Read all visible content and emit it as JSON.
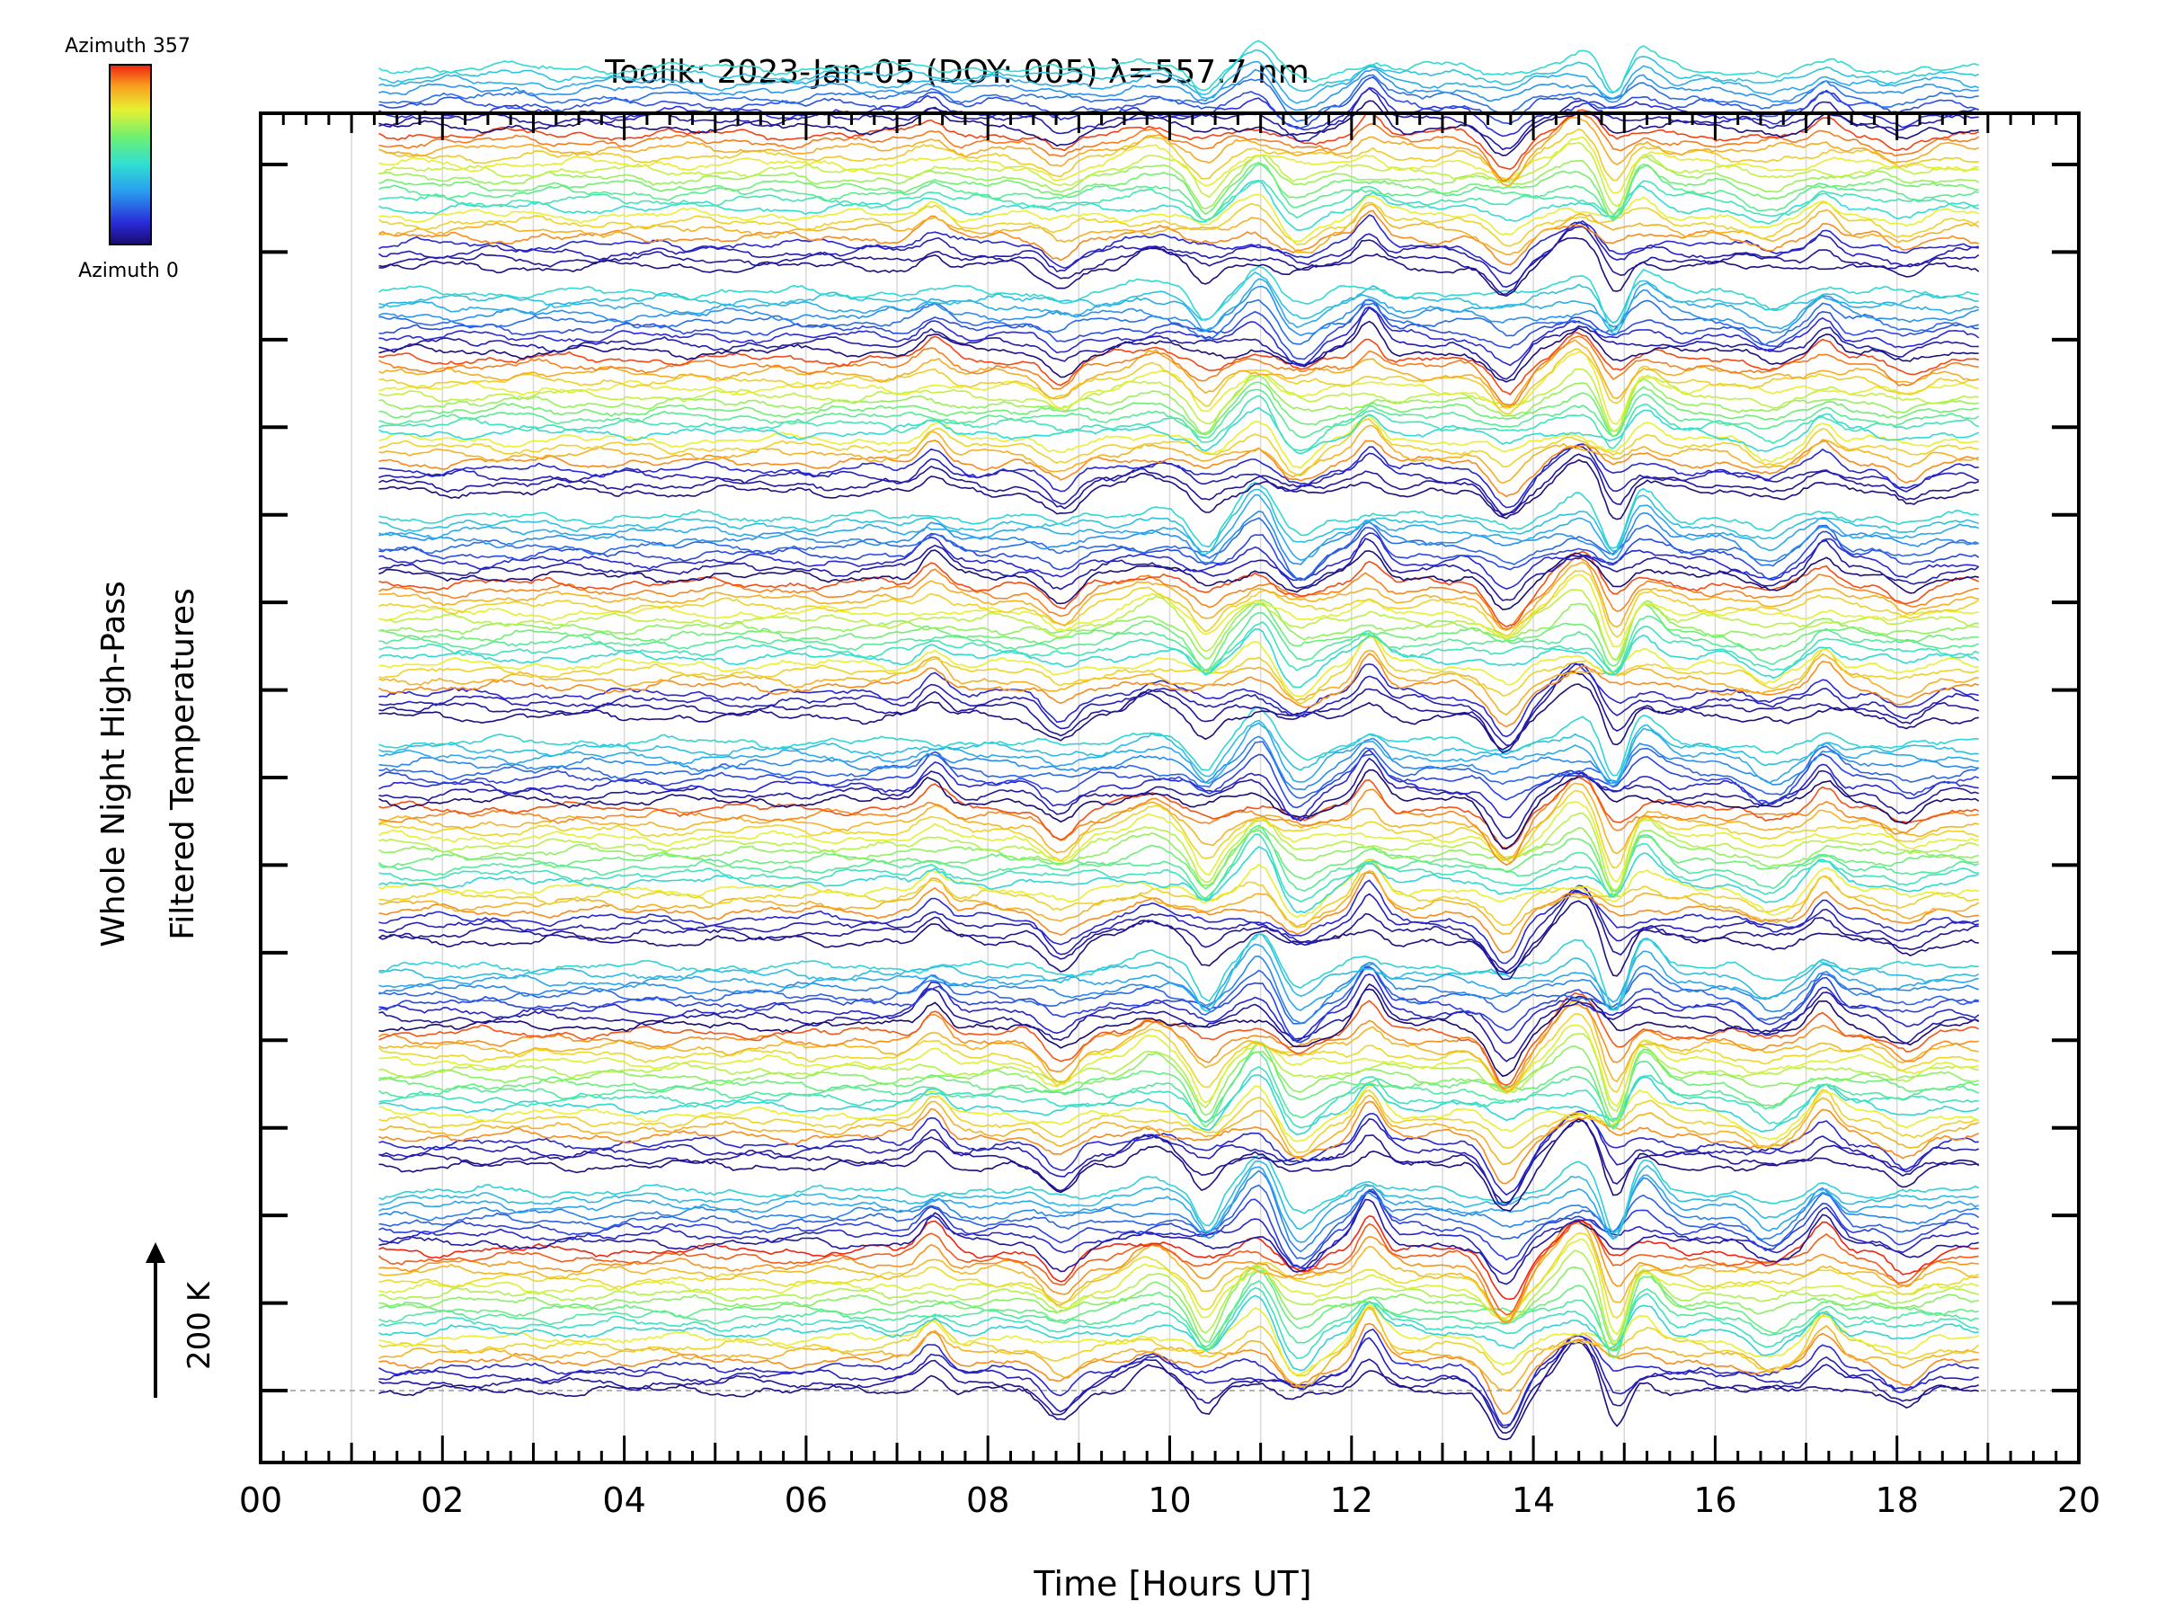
{
  "chart_data": {
    "type": "line",
    "title": "Toolik: 2023-Jan-05 (DOY: 005) λ=557.7 nm",
    "xlabel": "Time [Hours UT]",
    "ylabel_line1": "Whole Night High-Pass",
    "ylabel_line2": "Filtered Temperatures",
    "scale_bar_label": "200 K",
    "xlim": [
      0,
      20
    ],
    "x_tick_labels": [
      "00",
      "02",
      "04",
      "06",
      "08",
      "10",
      "12",
      "14",
      "16",
      "18",
      "20"
    ],
    "x_major_ticks": [
      0,
      2,
      4,
      6,
      8,
      10,
      12,
      14,
      16,
      18,
      20
    ],
    "x_minor_step": 0.25,
    "x_range_data": [
      1.3,
      18.9
    ],
    "y_major_tick_count": 15,
    "vertical_gridlines": true,
    "legend": {
      "type": "colorbar",
      "placement": "top-left",
      "top_label": "Azimuth 357",
      "bottom_label": "Azimuth 0",
      "colormap": "rainbow",
      "azimuth_range": [
        0,
        357
      ]
    },
    "groups": 6,
    "traces_per_group": 28,
    "colors": {
      "axis": "#000000",
      "grid": "#d8d8d8",
      "baseline": "#9a9a9a"
    },
    "features": {
      "wave_event_times_hours": [
        7.4,
        8.8,
        9.8,
        10.4,
        11.0,
        11.4,
        12.2,
        13.7,
        14.5,
        14.9,
        15.2,
        16.6,
        17.2,
        18.1
      ],
      "note": "traces are high-pass filtered temperature time series per azimuth, stacked with vertical offsets"
    }
  }
}
